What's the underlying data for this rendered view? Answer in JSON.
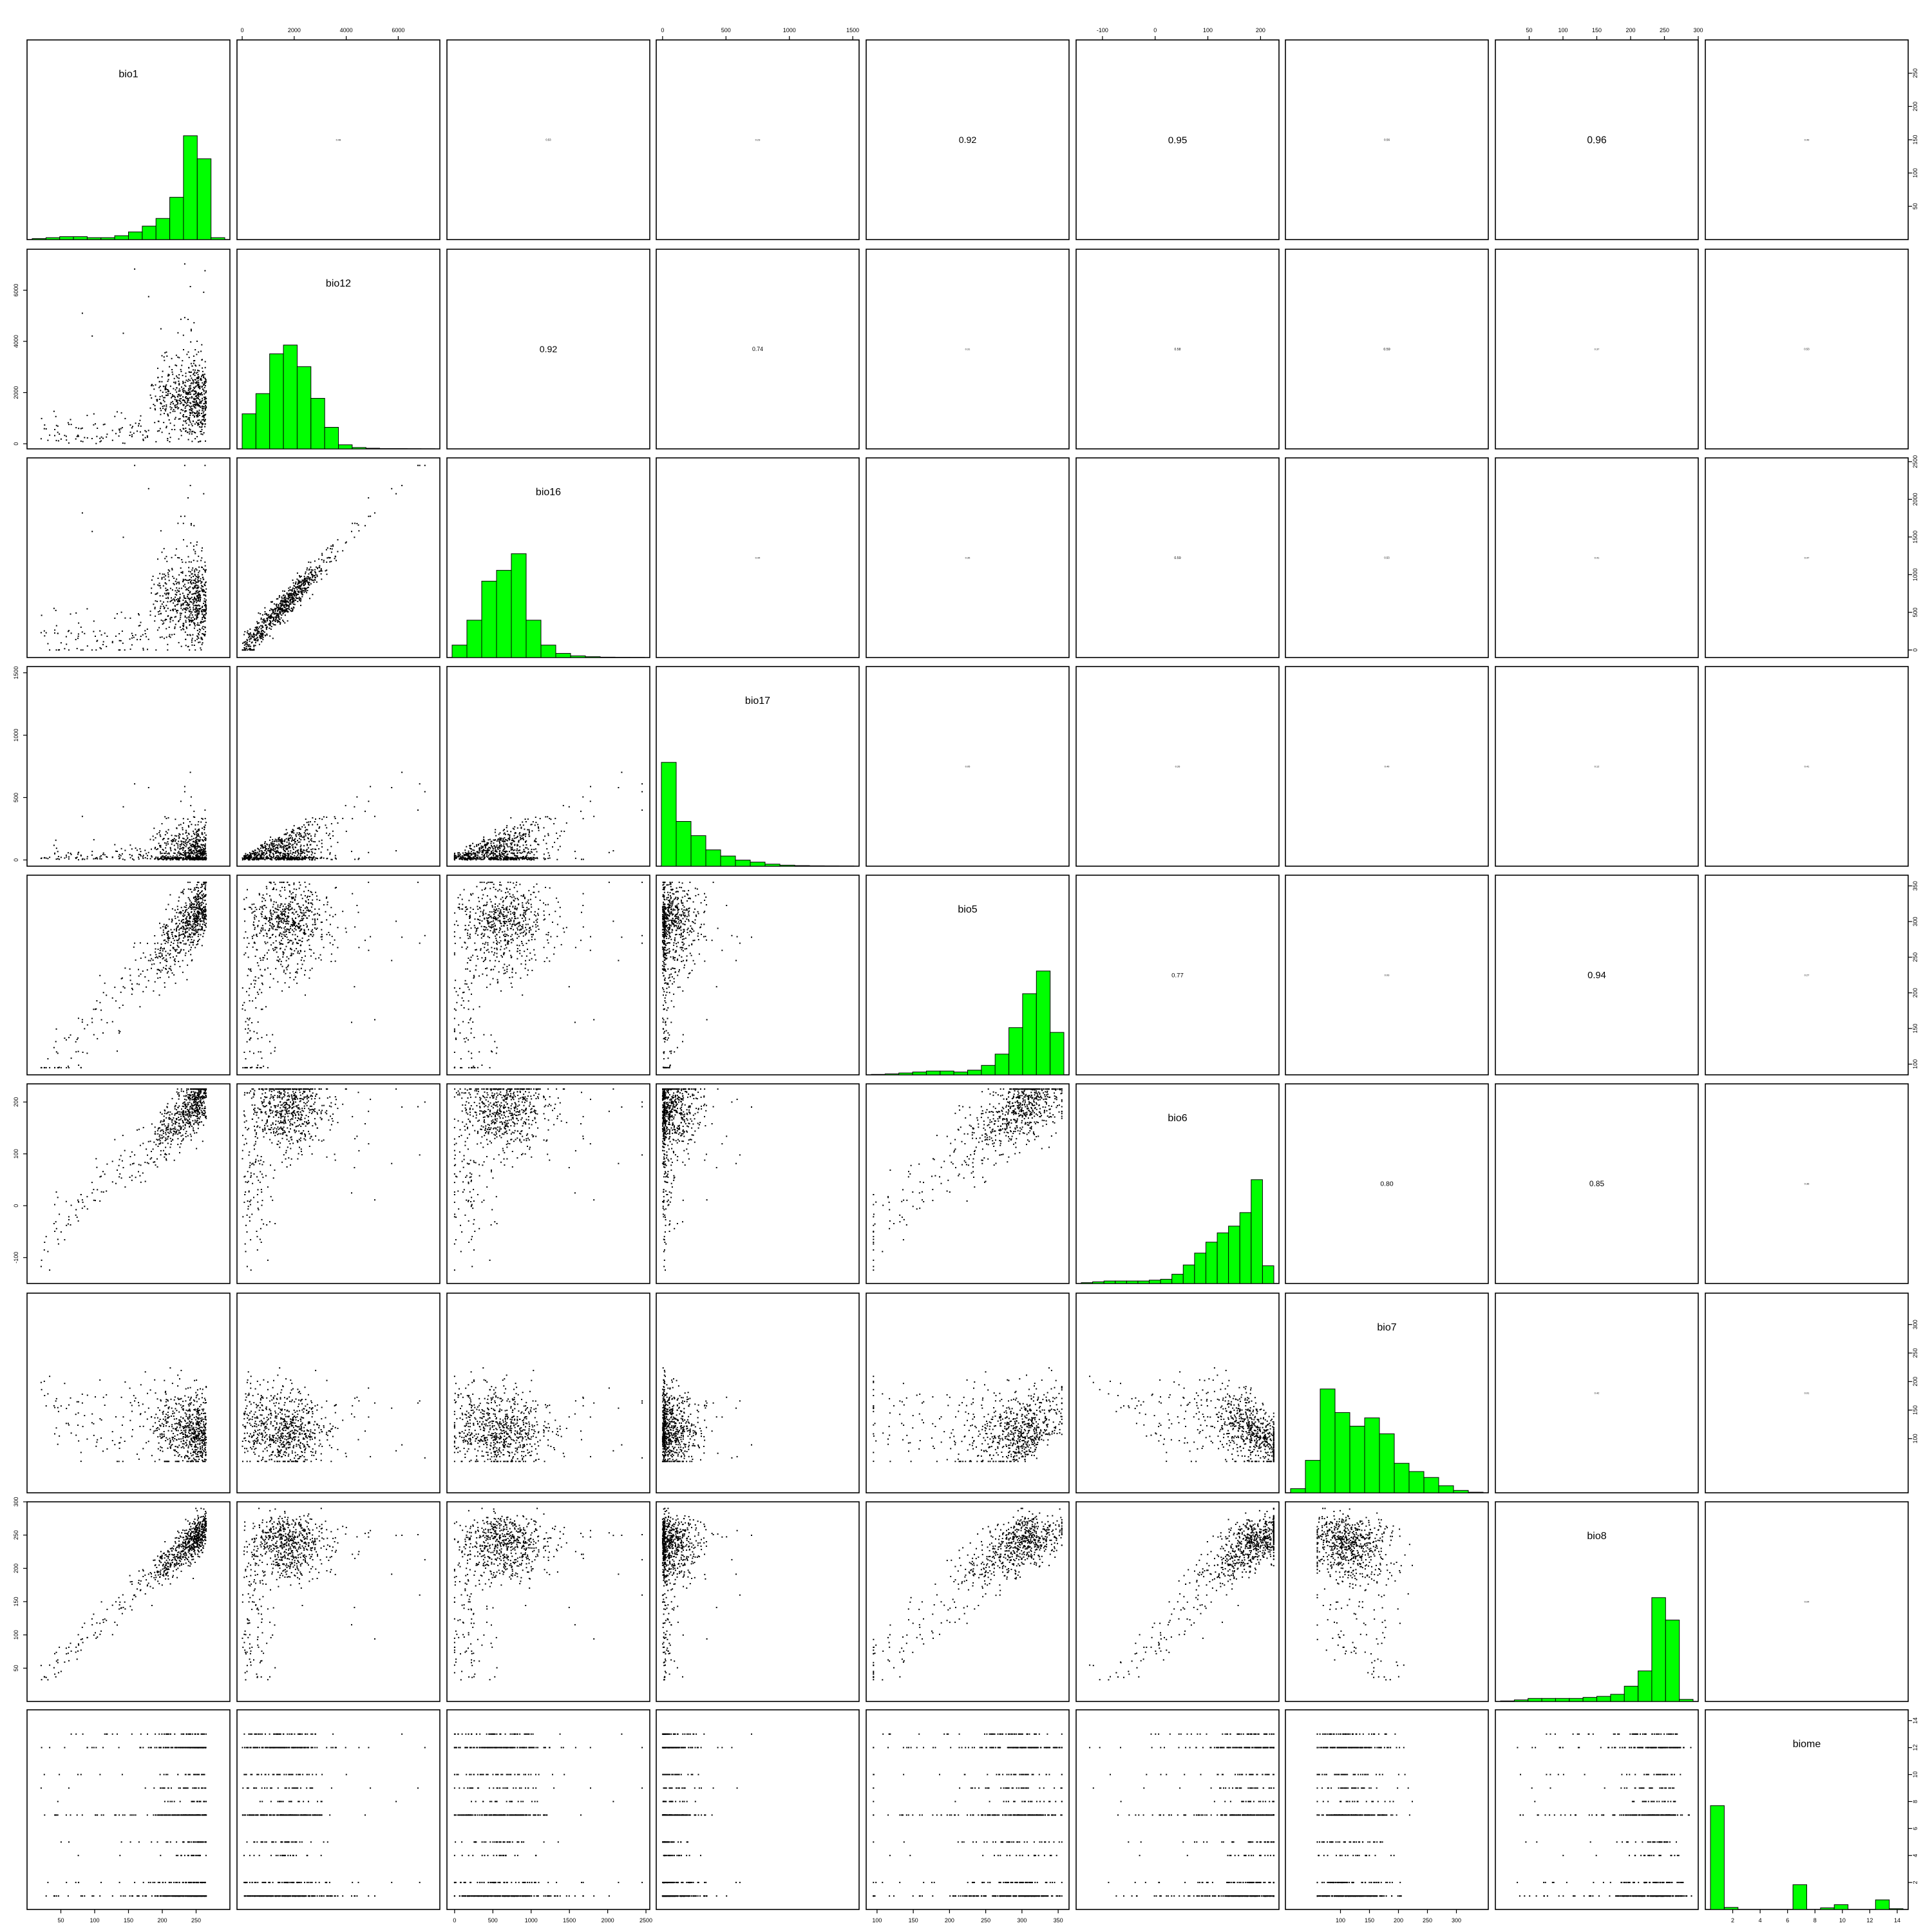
{
  "chart_data": {
    "type": "scatter-matrix",
    "variables": [
      "bio1",
      "bio12",
      "bio16",
      "bio17",
      "bio5",
      "bio6",
      "bio7",
      "bio8",
      "biome"
    ],
    "ranges": {
      "bio1": [
        0,
        300
      ],
      "bio12": [
        -200,
        7600
      ],
      "bio16": [
        -100,
        2550
      ],
      "bio17": [
        -50,
        1550
      ],
      "bio5": [
        85,
        365
      ],
      "bio6": [
        -150,
        235
      ],
      "bio7": [
        5,
        355
      ],
      "bio8": [
        0,
        300
      ],
      "biome": [
        0,
        14.8
      ]
    },
    "tick_values": {
      "bio1": [
        50,
        100,
        150,
        200,
        250
      ],
      "bio12": [
        0,
        2000,
        4000,
        6000
      ],
      "bio16": [
        0,
        500,
        1000,
        1500,
        2000,
        2500
      ],
      "bio17": [
        0,
        500,
        1000,
        1500
      ],
      "bio5": [
        100,
        150,
        200,
        250,
        300,
        350
      ],
      "bio6": [
        -100,
        0,
        100,
        200
      ],
      "bio7": [
        100,
        150,
        200,
        250,
        300
      ],
      "bio8": [
        50,
        100,
        150,
        200,
        250,
        300
      ],
      "biome": [
        2,
        4,
        6,
        8,
        10,
        12,
        14
      ]
    },
    "correlations": [
      {
        "row": "bio1",
        "col": "bio12",
        "value": "0.48"
      },
      {
        "row": "bio1",
        "col": "bio16",
        "value": "0.53"
      },
      {
        "row": "bio1",
        "col": "bio17",
        "value": "0.23"
      },
      {
        "row": "bio1",
        "col": "bio5",
        "value": "0.92"
      },
      {
        "row": "bio1",
        "col": "bio6",
        "value": "0.95"
      },
      {
        "row": "bio1",
        "col": "bio7",
        "value": "0.56"
      },
      {
        "row": "bio1",
        "col": "bio8",
        "value": "0.96"
      },
      {
        "row": "bio1",
        "col": "biome",
        "value": "0.49"
      },
      {
        "row": "bio12",
        "col": "bio16",
        "value": "0.92"
      },
      {
        "row": "bio12",
        "col": "bio17",
        "value": "0.74"
      },
      {
        "row": "bio12",
        "col": "bio5",
        "value": "0.31"
      },
      {
        "row": "bio12",
        "col": "bio6",
        "value": "0.58"
      },
      {
        "row": "bio12",
        "col": "bio7",
        "value": "0.59"
      },
      {
        "row": "bio12",
        "col": "bio8",
        "value": "0.37"
      },
      {
        "row": "bio12",
        "col": "biome",
        "value": "0.53"
      },
      {
        "row": "bio16",
        "col": "bio17",
        "value": "0.44"
      },
      {
        "row": "bio16",
        "col": "bio5",
        "value": "0.35"
      },
      {
        "row": "bio16",
        "col": "bio6",
        "value": "0.59"
      },
      {
        "row": "bio16",
        "col": "bio7",
        "value": "0.53"
      },
      {
        "row": "bio16",
        "col": "bio8",
        "value": "0.41"
      },
      {
        "row": "bio16",
        "col": "biome",
        "value": "0.47"
      },
      {
        "row": "bio17",
        "col": "bio5",
        "value": "0.05"
      },
      {
        "row": "bio17",
        "col": "bio6",
        "value": "0.26"
      },
      {
        "row": "bio17",
        "col": "bio7",
        "value": "0.49"
      },
      {
        "row": "bio17",
        "col": "bio8",
        "value": "0.12"
      },
      {
        "row": "bio17",
        "col": "biome",
        "value": "0.41"
      },
      {
        "row": "bio5",
        "col": "bio6",
        "value": "0.77"
      },
      {
        "row": "bio5",
        "col": "bio7",
        "value": "0.03"
      },
      {
        "row": "bio5",
        "col": "bio8",
        "value": "0.94"
      },
      {
        "row": "bio5",
        "col": "biome",
        "value": "0.27"
      },
      {
        "row": "bio6",
        "col": "bio7",
        "value": "0.80"
      },
      {
        "row": "bio6",
        "col": "bio8",
        "value": "0.85"
      },
      {
        "row": "bio6",
        "col": "biome",
        "value": "0.36"
      },
      {
        "row": "bio7",
        "col": "bio8",
        "value": "0.42"
      },
      {
        "row": "bio7",
        "col": "biome",
        "value": "0.01"
      },
      {
        "row": "bio8",
        "col": "biome",
        "value": "0.04"
      }
    ],
    "histograms": {
      "bio1": [
        0.5,
        1,
        1.5,
        1.5,
        1,
        1,
        2,
        4,
        7,
        11,
        22,
        54,
        42,
        1
      ],
      "bio12": [
        52,
        82,
        141,
        154,
        122,
        75,
        32,
        6,
        2,
        1,
        0.5,
        0.5,
        0.3,
        0.2
      ],
      "bio16": [
        15,
        45,
        92,
        105,
        125,
        45,
        15,
        5,
        2,
        1,
        0.5,
        0.3,
        0.2
      ],
      "bio17": [
        102,
        44,
        30,
        16,
        10,
        6,
        4,
        2,
        1,
        0.6,
        0.4,
        0.3,
        0.2
      ],
      "bio5": [
        0.5,
        1,
        2,
        3,
        4,
        4,
        3,
        5,
        10,
        22,
        50,
        86,
        110,
        45
      ],
      "bio6": [
        1,
        2,
        3,
        3,
        3,
        3,
        4,
        5,
        11,
        22,
        36,
        49,
        60,
        68,
        84,
        123,
        21
      ],
      "bio7": [
        7,
        55,
        176,
        136,
        113,
        127,
        100,
        50,
        36,
        26,
        12,
        4,
        1
      ],
      "bio8": [
        0.5,
        1.5,
        3,
        3,
        3,
        3,
        4,
        5,
        7,
        15,
        30,
        102,
        80,
        2
      ],
      "biome": [
        1300,
        26,
        0,
        0,
        0,
        0,
        310,
        0,
        20,
        60,
        0,
        0,
        120,
        10
      ]
    }
  }
}
